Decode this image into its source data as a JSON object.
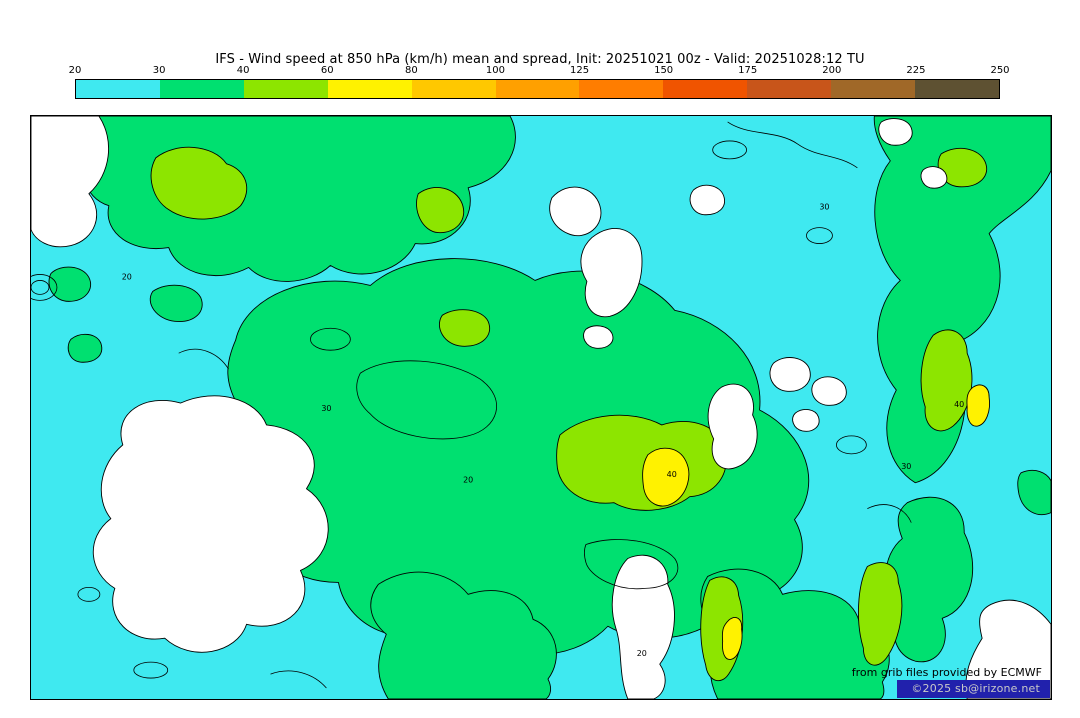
{
  "header": {
    "title": "IFS - Wind speed at 850 hPa (km/h) mean and spread, Init: 20251021 00z - Valid: 20251028:12 TU"
  },
  "colorbar": {
    "tick_labels": [
      "20",
      "30",
      "40",
      "60",
      "80",
      "100",
      "125",
      "150",
      "175",
      "200",
      "225",
      "250"
    ],
    "colors": [
      "#3FE9F0",
      "#00E070",
      "#8DE500",
      "#FFF200",
      "#FFC800",
      "#FFA000",
      "#FF7D00",
      "#F05400",
      "#C8551A",
      "#A06828",
      "#5E5132"
    ]
  },
  "map": {
    "sea_background": "#3FE9F0",
    "labels": {
      "l20": "20",
      "l30": "30",
      "l40": "40"
    },
    "attribution": "from grib files provided by ECMWF",
    "copyright": "©2025 sb@irizone.net",
    "copyright_bg": "#2121AC"
  },
  "chart_data": {
    "type": "heatmap",
    "title": "IFS - Wind speed at 850 hPa (km/h) mean and spread",
    "model": "IFS",
    "variable": "Wind speed at 850 hPa",
    "units": "km/h",
    "init": "20251021 00z",
    "valid": "20251028:12 TU",
    "levels": [
      20,
      30,
      40,
      60,
      80,
      100,
      125,
      150,
      175,
      200,
      225,
      250
    ],
    "palette": [
      "#3FE9F0",
      "#00E070",
      "#8DE500",
      "#FFF200",
      "#FFC800",
      "#FFA000",
      "#FF7D00",
      "#F05400",
      "#C8551A",
      "#A06828",
      "#5E5132"
    ],
    "legend_position": "top",
    "displayed_value_range": [
      0,
      80
    ],
    "contour_labels_visible": [
      20,
      30,
      40
    ],
    "attribution": "from grib files provided by ECMWF",
    "copyright": "©2025 sb@irizone.net"
  }
}
